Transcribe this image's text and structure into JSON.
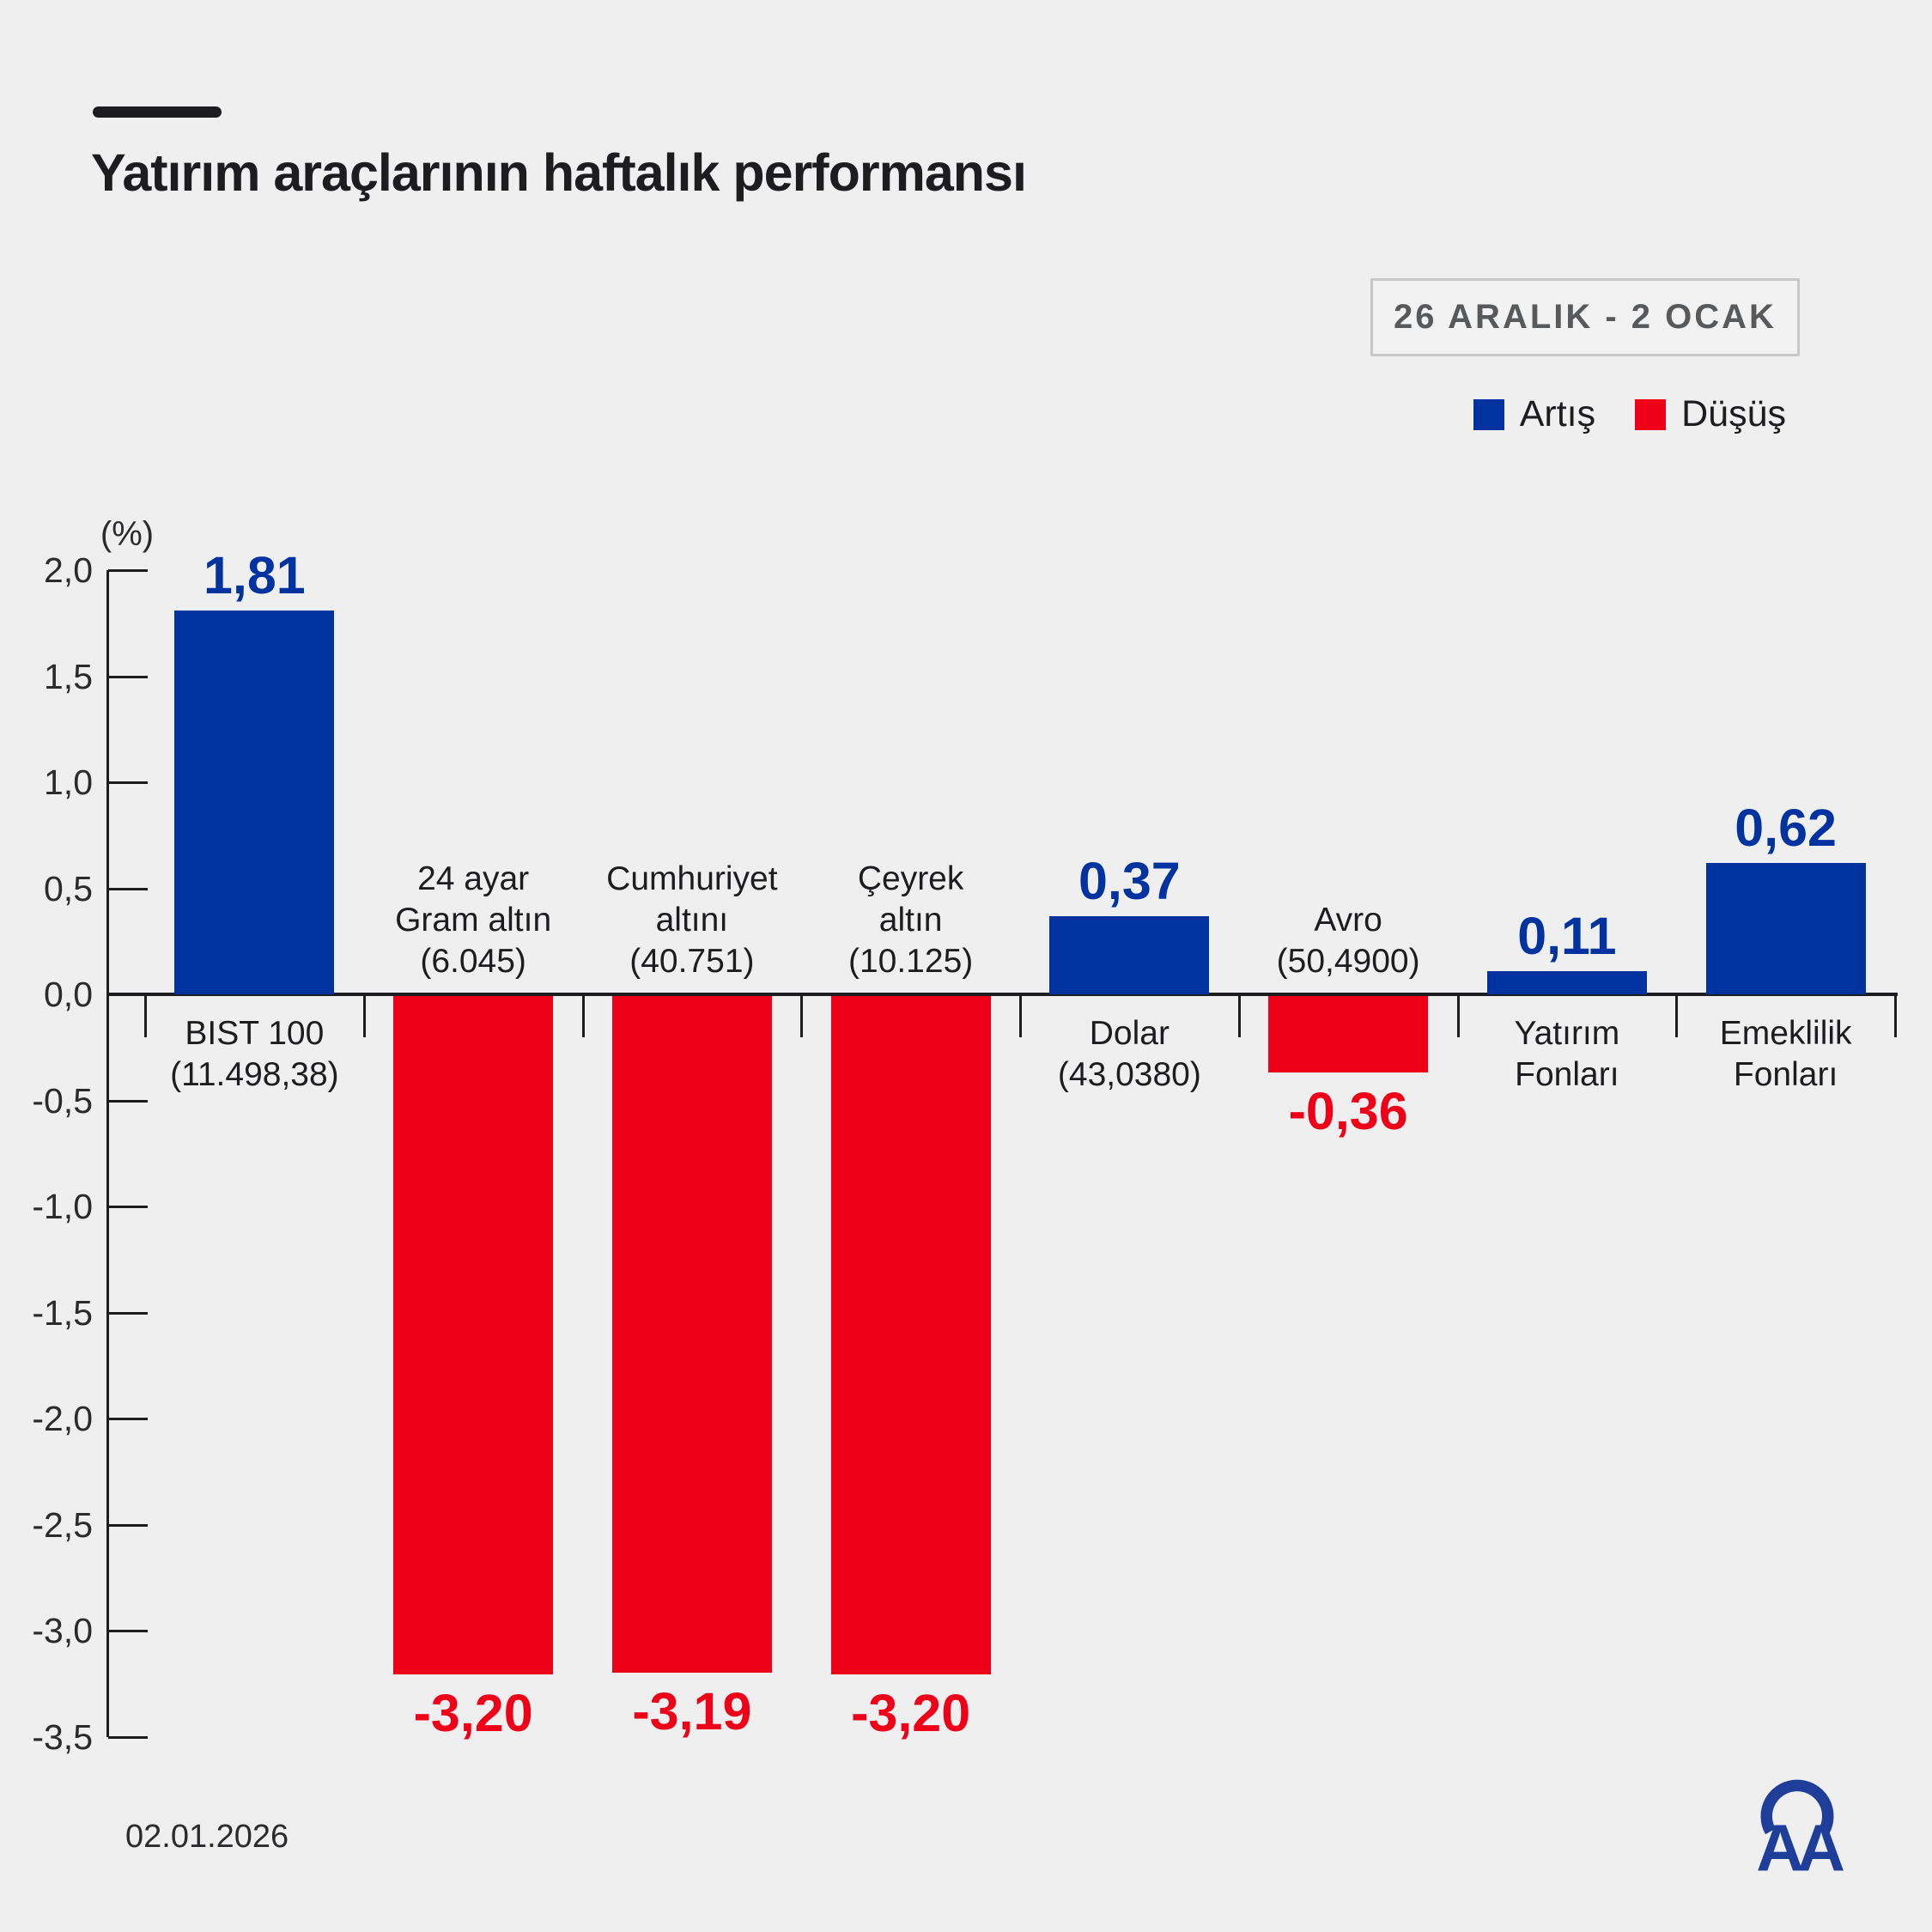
{
  "title": "Yatırım araçlarının haftalık performansı",
  "period_badge": "26 ARALIK - 2 OCAK",
  "legend": {
    "up_label": "Artış",
    "down_label": "Düşüş"
  },
  "colors": {
    "background": "#efeff0",
    "up": "#0033a0",
    "down": "#ee0019",
    "ink": "#1d1d1f",
    "badge_text": "#58595b",
    "badge_border": "#c7c7c8",
    "logo_blue": "#1f3e99"
  },
  "footer": {
    "date": "02.01.2026",
    "logo": "AA"
  },
  "chart_data": {
    "type": "bar",
    "title": "Yatırım araçlarının haftalık performansı",
    "unit_label": "(%)",
    "ylim": [
      -3.5,
      2.0
    ],
    "ytick_step": 0.5,
    "ytick_labels": [
      "2,0",
      "1,5",
      "1,0",
      "0,5",
      "0,0",
      "-0,5",
      "-1,0",
      "-1,5",
      "-2,0",
      "-2,5",
      "-3,0",
      "-3,5"
    ],
    "grid": false,
    "legend_position": "top-right",
    "categories": [
      {
        "label_lines": [
          "BIST 100",
          "(11.498,38)"
        ],
        "value": 1.81,
        "value_label": "1,81",
        "direction": "up"
      },
      {
        "label_lines": [
          "24 ayar",
          "Gram altın",
          "(6.045)"
        ],
        "value": -3.2,
        "value_label": "-3,20",
        "direction": "down"
      },
      {
        "label_lines": [
          "Cumhuriyet",
          "altını",
          "(40.751)"
        ],
        "value": -3.19,
        "value_label": "-3,19",
        "direction": "down"
      },
      {
        "label_lines": [
          "Çeyrek",
          "altın",
          "(10.125)"
        ],
        "value": -3.2,
        "value_label": "-3,20",
        "direction": "down"
      },
      {
        "label_lines": [
          "Dolar",
          "(43,0380)"
        ],
        "value": 0.37,
        "value_label": "0,37",
        "direction": "up"
      },
      {
        "label_lines": [
          "Avro",
          "(50,4900)"
        ],
        "value": -0.36,
        "value_label": "-0,36",
        "direction": "down"
      },
      {
        "label_lines": [
          "Yatırım",
          "Fonları"
        ],
        "value": 0.11,
        "value_label": "0,11",
        "direction": "up"
      },
      {
        "label_lines": [
          "Emeklilik",
          "Fonları"
        ],
        "value": 0.62,
        "value_label": "0,62",
        "direction": "up"
      }
    ]
  }
}
